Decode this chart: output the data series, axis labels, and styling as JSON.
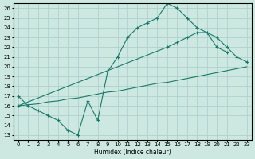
{
  "xlabel": "Humidex (Indice chaleur)",
  "bg_color": "#cce8e0",
  "grid_color": "#aacccc",
  "line_color": "#1a7a6a",
  "xlim": [
    -0.5,
    23.5
  ],
  "ylim": [
    12.5,
    26.5
  ],
  "yticks": [
    13,
    14,
    15,
    16,
    17,
    18,
    19,
    20,
    21,
    22,
    23,
    24,
    25,
    26
  ],
  "xticks": [
    0,
    1,
    2,
    3,
    4,
    5,
    6,
    7,
    8,
    9,
    10,
    11,
    12,
    13,
    14,
    15,
    16,
    17,
    18,
    19,
    20,
    21,
    22,
    23
  ],
  "line1_x": [
    0,
    1,
    2,
    3,
    4,
    5,
    6,
    7,
    8,
    9,
    10,
    11,
    12,
    13,
    14,
    15,
    16,
    17,
    18,
    19,
    20,
    21
  ],
  "line1_y": [
    17,
    16,
    15.5,
    15,
    14.5,
    13.5,
    13,
    16.5,
    14.5,
    19.5,
    21,
    23,
    24,
    24.5,
    25,
    26.5,
    26,
    25,
    24,
    23.5,
    22,
    21.5
  ],
  "line2_x": [
    0,
    1,
    2,
    3,
    4,
    5,
    6,
    7,
    8,
    9,
    10,
    11,
    12,
    13,
    14,
    15,
    16,
    17,
    18,
    19,
    20,
    21,
    22,
    23
  ],
  "line2_y": [
    16,
    16.1,
    16.2,
    16.4,
    16.5,
    16.7,
    16.8,
    17.0,
    17.2,
    17.4,
    17.5,
    17.7,
    17.9,
    18.1,
    18.3,
    18.4,
    18.6,
    18.8,
    19.0,
    19.2,
    19.4,
    19.6,
    19.8,
    20.0
  ],
  "line3_x": [
    0,
    15,
    16,
    17,
    18,
    19,
    20,
    21,
    22,
    23
  ],
  "line3_y": [
    16,
    22,
    22.5,
    23.0,
    23.5,
    23.5,
    23.0,
    22.0,
    21.0,
    20.5
  ]
}
